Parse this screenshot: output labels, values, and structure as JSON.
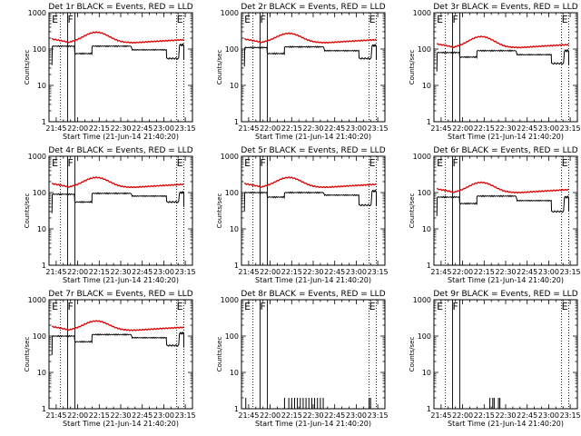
{
  "chart_data": [
    {
      "type": "line",
      "title": "Det 1r BLACK = Events, RED = LLD",
      "xlabel": "Start Time (21-Jun-14 21:40:20)",
      "ylabel": "Counts/sec",
      "x_ticks": [
        "21:45",
        "22:00",
        "22:15",
        "22:30",
        "22:45",
        "23:00",
        "23:15"
      ],
      "y_ticks": [
        "1",
        "10",
        "100",
        "1000"
      ],
      "yscale": "log",
      "xlim_minutes": [
        0,
        100
      ],
      "ylim": [
        1,
        1000
      ],
      "markers": [
        {
          "label": "E",
          "x": 2
        },
        {
          "label": "F",
          "x": 13
        },
        {
          "label": "E",
          "x": 89
        }
      ],
      "marker_lines": [
        {
          "x": 8,
          "style": "dotted"
        },
        {
          "x": 13,
          "style": "solid"
        },
        {
          "x": 18,
          "style": "solid"
        },
        {
          "x": 89,
          "style": "dotted"
        },
        {
          "x": 94,
          "style": "dotted"
        }
      ],
      "series": [
        {
          "name": "Events",
          "color": "#000000",
          "kind": "events",
          "levels": [
            120,
            75,
            120,
            95,
            55,
            130
          ],
          "breaks": [
            2,
            8,
            18,
            30,
            58,
            82,
            91,
            94
          ]
        },
        {
          "name": "LLD",
          "color": "#dd0000",
          "kind": "lld",
          "base": 150,
          "peak": 290
        }
      ]
    },
    {
      "type": "line",
      "title": "Det 2r BLACK = Events, RED = LLD",
      "xlabel": "Start Time (21-Jun-14 21:40:20)",
      "ylabel": "Counts/sec",
      "x_ticks": [
        "21:45",
        "22:00",
        "22:15",
        "22:30",
        "22:45",
        "23:00",
        "23:15"
      ],
      "y_ticks": [
        "1",
        "10",
        "100",
        "1000"
      ],
      "yscale": "log",
      "xlim_minutes": [
        0,
        100
      ],
      "ylim": [
        1,
        1000
      ],
      "markers": [
        {
          "label": "E",
          "x": 2
        },
        {
          "label": "F",
          "x": 13
        },
        {
          "label": "E",
          "x": 89
        }
      ],
      "marker_lines": [
        {
          "x": 8,
          "style": "dotted"
        },
        {
          "x": 13,
          "style": "solid"
        },
        {
          "x": 18,
          "style": "solid"
        },
        {
          "x": 89,
          "style": "dotted"
        },
        {
          "x": 94,
          "style": "dotted"
        }
      ],
      "series": [
        {
          "name": "Events",
          "color": "#000000",
          "kind": "events",
          "levels": [
            110,
            75,
            115,
            90,
            55,
            125
          ],
          "breaks": [
            2,
            8,
            18,
            30,
            58,
            82,
            91,
            94
          ]
        },
        {
          "name": "LLD",
          "color": "#dd0000",
          "kind": "lld",
          "base": 150,
          "peak": 270
        }
      ]
    },
    {
      "type": "line",
      "title": "Det 3r BLACK = Events, RED = LLD",
      "xlabel": "Start Time (21-Jun-14 21:40:20)",
      "ylabel": "Counts/sec",
      "x_ticks": [
        "21:45",
        "22:00",
        "22:15",
        "22:30",
        "22:45",
        "23:00",
        "23:15"
      ],
      "y_ticks": [
        "1",
        "10",
        "100",
        "1000"
      ],
      "yscale": "log",
      "xlim_minutes": [
        0,
        100
      ],
      "ylim": [
        1,
        1000
      ],
      "markers": [
        {
          "label": "E",
          "x": 2
        },
        {
          "label": "F",
          "x": 13
        },
        {
          "label": "E",
          "x": 89
        }
      ],
      "marker_lines": [
        {
          "x": 8,
          "style": "dotted"
        },
        {
          "x": 13,
          "style": "solid"
        },
        {
          "x": 18,
          "style": "solid"
        },
        {
          "x": 89,
          "style": "dotted"
        },
        {
          "x": 94,
          "style": "dotted"
        }
      ],
      "series": [
        {
          "name": "Events",
          "color": "#000000",
          "kind": "events",
          "levels": [
            80,
            60,
            90,
            70,
            40,
            90
          ],
          "breaks": [
            2,
            8,
            18,
            30,
            58,
            82,
            91,
            94
          ]
        },
        {
          "name": "LLD",
          "color": "#dd0000",
          "kind": "lld",
          "base": 110,
          "peak": 220
        }
      ]
    },
    {
      "type": "line",
      "title": "Det 4r BLACK = Events, RED = LLD",
      "xlabel": "Start Time (21-Jun-14 21:40:20)",
      "ylabel": "Counts/sec",
      "x_ticks": [
        "21:45",
        "22:00",
        "22:15",
        "22:30",
        "22:45",
        "23:00",
        "23:15"
      ],
      "y_ticks": [
        "1",
        "10",
        "100",
        "1000"
      ],
      "yscale": "log",
      "xlim_minutes": [
        0,
        100
      ],
      "ylim": [
        1,
        1000
      ],
      "markers": [
        {
          "label": "E",
          "x": 2
        },
        {
          "label": "F",
          "x": 13
        },
        {
          "label": "E",
          "x": 89
        }
      ],
      "marker_lines": [
        {
          "x": 8,
          "style": "dotted"
        },
        {
          "x": 13,
          "style": "solid"
        },
        {
          "x": 18,
          "style": "solid"
        },
        {
          "x": 89,
          "style": "dotted"
        },
        {
          "x": 94,
          "style": "dotted"
        }
      ],
      "series": [
        {
          "name": "Events",
          "color": "#000000",
          "kind": "events",
          "levels": [
            90,
            55,
            95,
            80,
            55,
            100
          ],
          "breaks": [
            2,
            8,
            18,
            30,
            58,
            82,
            91,
            94
          ]
        },
        {
          "name": "LLD",
          "color": "#dd0000",
          "kind": "lld",
          "base": 140,
          "peak": 260
        }
      ]
    },
    {
      "type": "line",
      "title": "Det 5r BLACK = Events, RED = LLD",
      "xlabel": "Start Time (21-Jun-14 21:40:20)",
      "ylabel": "Counts/sec",
      "x_ticks": [
        "21:45",
        "22:00",
        "22:15",
        "22:30",
        "22:45",
        "23:00",
        "23:15"
      ],
      "y_ticks": [
        "1",
        "10",
        "100",
        "1000"
      ],
      "yscale": "log",
      "xlim_minutes": [
        0,
        100
      ],
      "ylim": [
        1,
        1000
      ],
      "markers": [
        {
          "label": "E",
          "x": 2
        },
        {
          "label": "F",
          "x": 13
        },
        {
          "label": "E",
          "x": 89
        }
      ],
      "marker_lines": [
        {
          "x": 8,
          "style": "dotted"
        },
        {
          "x": 13,
          "style": "solid"
        },
        {
          "x": 18,
          "style": "solid"
        },
        {
          "x": 89,
          "style": "dotted"
        },
        {
          "x": 94,
          "style": "dotted"
        }
      ],
      "series": [
        {
          "name": "Events",
          "color": "#000000",
          "kind": "events",
          "levels": [
            100,
            75,
            100,
            85,
            45,
            110
          ],
          "breaks": [
            2,
            8,
            18,
            30,
            58,
            82,
            91,
            94
          ]
        },
        {
          "name": "LLD",
          "color": "#dd0000",
          "kind": "lld",
          "base": 140,
          "peak": 260
        }
      ]
    },
    {
      "type": "line",
      "title": "Det 6r BLACK = Events, RED = LLD",
      "xlabel": "Start Time (21-Jun-14 21:40:20)",
      "ylabel": "Counts/sec",
      "x_ticks": [
        "21:45",
        "22:00",
        "22:15",
        "22:30",
        "22:45",
        "23:00",
        "23:15"
      ],
      "y_ticks": [
        "1",
        "10",
        "100",
        "1000"
      ],
      "yscale": "log",
      "xlim_minutes": [
        0,
        100
      ],
      "ylim": [
        1,
        1000
      ],
      "markers": [
        {
          "label": "E",
          "x": 2
        },
        {
          "label": "F",
          "x": 13
        },
        {
          "label": "E",
          "x": 89
        }
      ],
      "marker_lines": [
        {
          "x": 8,
          "style": "dotted"
        },
        {
          "x": 13,
          "style": "solid"
        },
        {
          "x": 18,
          "style": "solid"
        },
        {
          "x": 89,
          "style": "dotted"
        },
        {
          "x": 94,
          "style": "dotted"
        }
      ],
      "series": [
        {
          "name": "Events",
          "color": "#000000",
          "kind": "events",
          "levels": [
            75,
            50,
            80,
            60,
            30,
            75
          ],
          "breaks": [
            2,
            8,
            18,
            30,
            58,
            82,
            91,
            94
          ]
        },
        {
          "name": "LLD",
          "color": "#dd0000",
          "kind": "lld",
          "base": 100,
          "peak": 190
        }
      ]
    },
    {
      "type": "line",
      "title": "Det 7r BLACK = Events, RED = LLD",
      "xlabel": "Start Time (21-Jun-14 21:40:20)",
      "ylabel": "Counts/sec",
      "x_ticks": [
        "21:45",
        "22:00",
        "22:15",
        "22:30",
        "22:45",
        "23:00",
        "23:15"
      ],
      "y_ticks": [
        "1",
        "10",
        "100",
        "1000"
      ],
      "yscale": "log",
      "xlim_minutes": [
        0,
        100
      ],
      "ylim": [
        1,
        1000
      ],
      "markers": [
        {
          "label": "E",
          "x": 2
        },
        {
          "label": "F",
          "x": 13
        },
        {
          "label": "E",
          "x": 89
        }
      ],
      "marker_lines": [
        {
          "x": 8,
          "style": "dotted"
        },
        {
          "x": 13,
          "style": "solid"
        },
        {
          "x": 18,
          "style": "solid"
        },
        {
          "x": 89,
          "style": "dotted"
        },
        {
          "x": 94,
          "style": "dotted"
        }
      ],
      "series": [
        {
          "name": "Events",
          "color": "#000000",
          "kind": "events",
          "levels": [
            100,
            70,
            110,
            90,
            55,
            120
          ],
          "breaks": [
            2,
            8,
            18,
            30,
            58,
            82,
            91,
            94
          ]
        },
        {
          "name": "LLD",
          "color": "#dd0000",
          "kind": "lld",
          "base": 145,
          "peak": 260
        }
      ]
    },
    {
      "type": "line",
      "title": "Det 8r BLACK = Events, RED = LLD",
      "xlabel": "Start Time (21-Jun-14 21:40:20)",
      "ylabel": "Counts/sec",
      "x_ticks": [
        "21:45",
        "22:00",
        "22:15",
        "22:30",
        "22:45",
        "23:00",
        "23:15"
      ],
      "y_ticks": [
        "1",
        "10",
        "100",
        "1000"
      ],
      "yscale": "log",
      "xlim_minutes": [
        0,
        100
      ],
      "ylim": [
        1,
        1000
      ],
      "markers": [
        {
          "label": "E",
          "x": 2
        },
        {
          "label": "F",
          "x": 13
        },
        {
          "label": "E",
          "x": 89
        }
      ],
      "marker_lines": [
        {
          "x": 8,
          "style": "dotted"
        },
        {
          "x": 13,
          "style": "solid"
        },
        {
          "x": 18,
          "style": "solid"
        },
        {
          "x": 89,
          "style": "dotted"
        },
        {
          "x": 94,
          "style": "dotted"
        }
      ],
      "series": [
        {
          "name": "Events",
          "color": "#000000",
          "kind": "spikes",
          "spikes_x": [
            3,
            30,
            33,
            35,
            37,
            39,
            41,
            43,
            45,
            47,
            49,
            51,
            53,
            55,
            57,
            89,
            90
          ],
          "spike_value": 2
        }
      ]
    },
    {
      "type": "line",
      "title": "Det 9r BLACK = Events, RED = LLD",
      "xlabel": "Start Time (21-Jun-14 21:40:20)",
      "ylabel": "Counts/sec",
      "x_ticks": [
        "21:45",
        "22:00",
        "22:15",
        "22:30",
        "22:45",
        "23:00",
        "23:15"
      ],
      "y_ticks": [
        "1",
        "10",
        "100",
        "1000"
      ],
      "yscale": "log",
      "xlim_minutes": [
        0,
        100
      ],
      "ylim": [
        1,
        1000
      ],
      "markers": [
        {
          "label": "E",
          "x": 2
        },
        {
          "label": "F",
          "x": 13
        },
        {
          "label": "E",
          "x": 89
        }
      ],
      "marker_lines": [
        {
          "x": 8,
          "style": "dotted"
        },
        {
          "x": 13,
          "style": "solid"
        },
        {
          "x": 18,
          "style": "solid"
        },
        {
          "x": 89,
          "style": "dotted"
        },
        {
          "x": 94,
          "style": "dotted"
        }
      ],
      "series": [
        {
          "name": "Events",
          "color": "#000000",
          "kind": "spikes",
          "spikes_x": [
            39,
            41,
            42,
            45,
            46
          ],
          "spike_value": 2
        }
      ]
    }
  ]
}
